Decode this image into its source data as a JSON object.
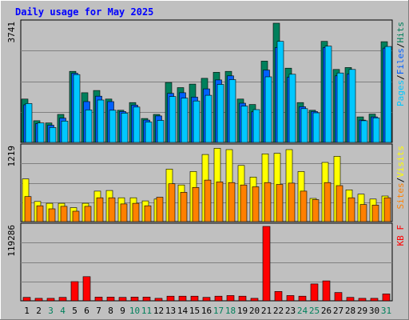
{
  "chart_data": {
    "type": "bar",
    "title": "Daily usage for May 2025",
    "days": [
      "1",
      "2",
      "3",
      "4",
      "5",
      "6",
      "7",
      "8",
      "9",
      "10",
      "11",
      "12",
      "13",
      "14",
      "15",
      "16",
      "17",
      "18",
      "19",
      "20",
      "21",
      "22",
      "23",
      "24",
      "25",
      "26",
      "27",
      "28",
      "29",
      "30",
      "31"
    ],
    "weekend_days": [
      3,
      4,
      10,
      11,
      17,
      18,
      24,
      25,
      31
    ],
    "panels": [
      {
        "id": "hits",
        "max_label": "3741",
        "ylim": [
          0,
          3741
        ],
        "legend": [
          {
            "label": "Pages",
            "color": "#00c8ff"
          },
          {
            "label": "/",
            "color": "#000000"
          },
          {
            "label": "Files",
            "color": "#0060ff"
          },
          {
            "label": "/",
            "color": "#000000"
          },
          {
            "label": "Hits",
            "color": "#00805c"
          }
        ],
        "series": [
          {
            "name": "Hits",
            "color": "#00805c",
            "values": [
              1360,
              680,
              610,
              880,
              2230,
              1560,
              1630,
              1360,
              1010,
              1250,
              750,
              880,
              1880,
              1720,
              1830,
              2010,
              2200,
              2230,
              1360,
              1190,
              2550,
              3740,
              2330,
              1250,
              1010,
              3170,
              2290,
              2350,
              800,
              890,
              3160
            ]
          },
          {
            "name": "Files",
            "color": "#0060ff",
            "values": [
              1180,
              590,
              540,
              760,
              2170,
              1280,
              1450,
              1280,
              970,
              1170,
              700,
              830,
              1540,
              1560,
              1420,
              1680,
              1960,
              2090,
              1230,
              960,
              2270,
              2980,
              2050,
              1120,
              970,
              2980,
              2090,
              2150,
              700,
              800,
              2960
            ]
          },
          {
            "name": "Pages",
            "color": "#00c8ff",
            "values": [
              1220,
              610,
              470,
              670,
              2130,
              1020,
              1330,
              1010,
              920,
              1110,
              640,
              690,
              1440,
              1390,
              1300,
              1480,
              1820,
              1970,
              1140,
              1030,
              2060,
              3170,
              2140,
              1060,
              930,
              3020,
              2180,
              2290,
              680,
              770,
              3010
            ]
          }
        ]
      },
      {
        "id": "visits",
        "max_label": "1219",
        "ylim": [
          0,
          1219
        ],
        "legend": [
          {
            "label": "Sites",
            "color": "#ff8000"
          },
          {
            "label": "/",
            "color": "#000000"
          },
          {
            "label": "Visits",
            "color": "#ffff00"
          }
        ],
        "series": [
          {
            "name": "Visits",
            "color": "#ffff00",
            "values": [
              700,
              330,
              300,
              300,
              230,
              300,
              500,
              510,
              390,
              390,
              340,
              370,
              860,
              600,
              820,
              1100,
              1200,
              1180,
              920,
              730,
              1110,
              1120,
              1180,
              820,
              380,
              970,
              1070,
              520,
              450,
              370,
              420
            ]
          },
          {
            "name": "Sites",
            "color": "#ff8000",
            "values": [
              410,
              260,
              210,
              250,
              170,
              250,
              390,
              390,
              290,
              300,
              260,
              400,
              620,
              480,
              560,
              680,
              650,
              640,
              600,
              570,
              640,
              610,
              630,
              500,
              360,
              640,
              590,
              390,
              280,
              270,
              390
            ]
          }
        ]
      },
      {
        "id": "kbytes",
        "max_label": "119286",
        "ylim": [
          0,
          119286
        ],
        "legend": [
          {
            "label": "KB F",
            "color": "#ff0000"
          }
        ],
        "series": [
          {
            "name": "KB F",
            "color": "#ff0000",
            "values": [
              5500,
              4000,
              4000,
              5500,
              30800,
              38700,
              6000,
              6000,
              5500,
              6000,
              6000,
              4000,
              7500,
              7500,
              7500,
              5500,
              7500,
              8500,
              7500,
              4000,
              119286,
              15000,
              8500,
              7500,
              27000,
              32000,
              13400,
              5500,
              4000,
              4000,
              11000
            ]
          }
        ]
      }
    ]
  }
}
